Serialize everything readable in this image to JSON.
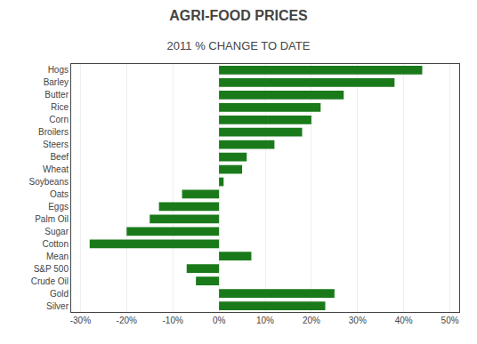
{
  "chart_data": {
    "type": "bar",
    "orientation": "horizontal",
    "title": "AGRI-FOOD PRICES",
    "subtitle": "2011 % CHANGE TO DATE",
    "categories": [
      "Hogs",
      "Barley",
      "Butter",
      "Rice",
      "Corn",
      "Broilers",
      "Steers",
      "Beef",
      "Wheat",
      "Soybeans",
      "Oats",
      "Eggs",
      "Palm Oil",
      "Sugar",
      "Cotton",
      "Mean",
      "S&P 500",
      "Crude Oil",
      "Gold",
      "Silver"
    ],
    "values": [
      44,
      38,
      27,
      22,
      20,
      18,
      12,
      6,
      5,
      1,
      -8,
      -13,
      -15,
      -20,
      -28,
      7,
      -7,
      -5,
      25,
      23
    ],
    "color": "#1a7a1a",
    "xlim": [
      -32,
      52
    ],
    "xticks": [
      {
        "value": -30,
        "label": "-30%"
      },
      {
        "value": -20,
        "label": "-20%"
      },
      {
        "value": -10,
        "label": "-10%"
      },
      {
        "value": 0,
        "label": "0%"
      },
      {
        "value": 10,
        "label": "10%"
      },
      {
        "value": 20,
        "label": "20%"
      },
      {
        "value": 30,
        "label": "30%"
      },
      {
        "value": 40,
        "label": "40%"
      },
      {
        "value": 50,
        "label": "50%"
      }
    ],
    "grid": true
  }
}
